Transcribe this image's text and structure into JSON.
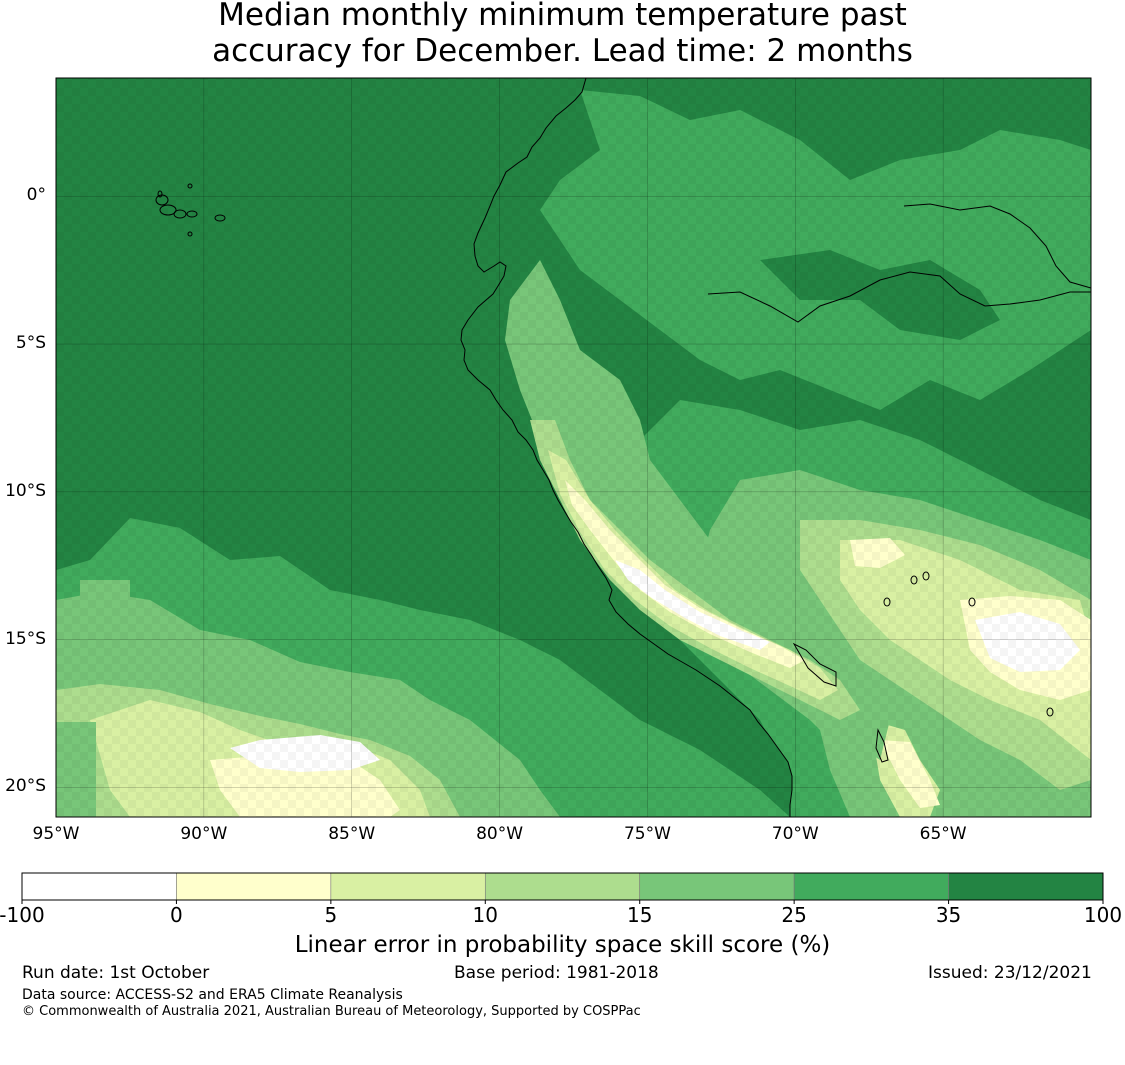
{
  "title_line1": "Median monthly minimum temperature past",
  "title_line2": "accuracy for December. Lead time: 2 months",
  "map": {
    "lon_labels": [
      "95°W",
      "90°W",
      "85°W",
      "80°W",
      "75°W",
      "70°W",
      "65°W"
    ],
    "lat_labels": [
      "0°",
      "5°S",
      "10°S",
      "15°S",
      "20°S"
    ],
    "lon_range": [
      -95,
      -60
    ],
    "lat_range": [
      -21,
      4
    ]
  },
  "colorbar": {
    "ticks": [
      "-100",
      "0",
      "5",
      "10",
      "15",
      "25",
      "35",
      "100"
    ],
    "colors": [
      "#ffffff",
      "#ffffcc",
      "#d9f0a3",
      "#addd8e",
      "#78c679",
      "#41ab5d",
      "#238443"
    ],
    "label": "Linear error in probability space skill score (%)"
  },
  "footer": {
    "run_date": "Run date: 1st October",
    "base_period": "Base period: 1981-2018",
    "issued": "Issued: 23/12/2021",
    "source": "Data source: ACCESS-S2 and ERA5 Climate Reanalysis",
    "copyright": "© Commonwealth of Australia 2021, Australian Bureau of Meteorology, Supported by COSPPac"
  }
}
